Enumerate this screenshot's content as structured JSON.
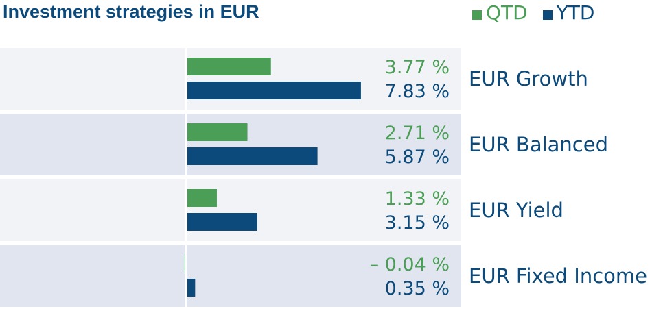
{
  "chart_data": {
    "type": "bar",
    "orientation": "horizontal",
    "title": "Investment strategies in EUR",
    "categories": [
      "EUR Growth",
      "EUR Balanced",
      "EUR Yield",
      "EUR Fixed Income"
    ],
    "series": [
      {
        "name": "QTD",
        "color": "#4a9e55",
        "values": [
          3.77,
          2.71,
          1.33,
          -0.04
        ],
        "labels": [
          "3.77 %",
          "2.71 %",
          "1.33 %",
          "– 0.04 %"
        ]
      },
      {
        "name": "YTD",
        "color": "#0b4a7a",
        "values": [
          7.83,
          5.87,
          3.15,
          0.35
        ],
        "labels": [
          "7.83 %",
          "5.87 %",
          "3.15 %",
          "0.35 %"
        ]
      }
    ],
    "legend": "top-right",
    "grid": false
  }
}
